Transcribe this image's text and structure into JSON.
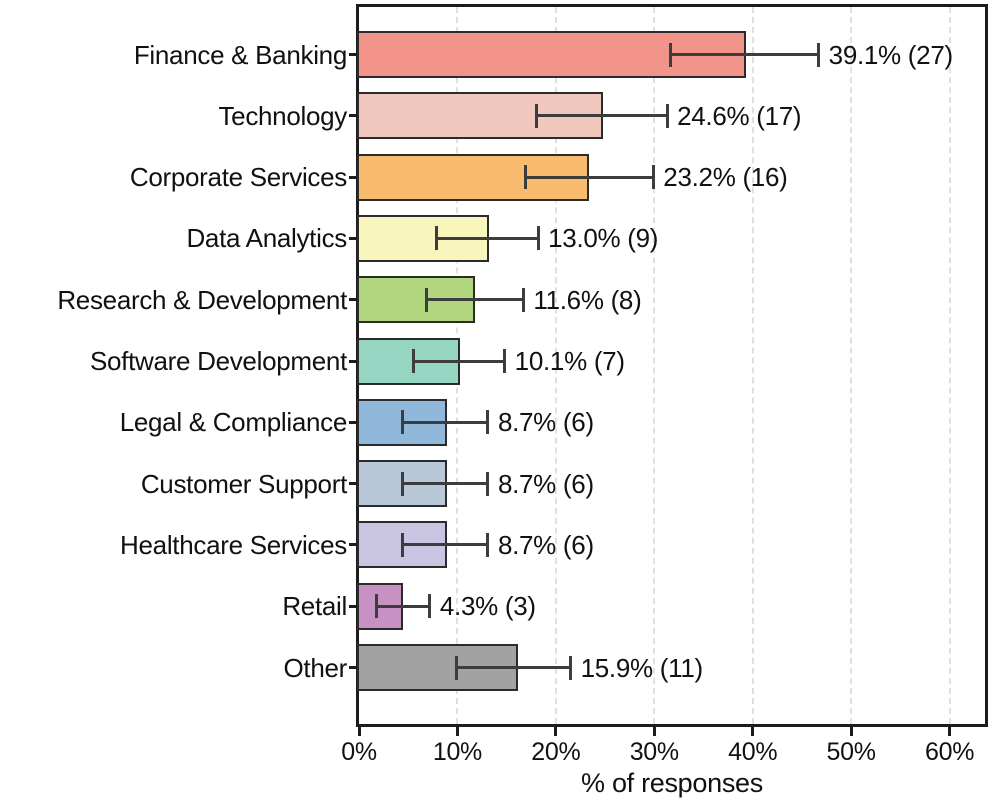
{
  "chart_data": {
    "type": "bar",
    "orientation": "horizontal",
    "title": "",
    "xlabel": "% of responses",
    "ylabel": "",
    "xlim": [
      0,
      63.6
    ],
    "x_tick_values": [
      0,
      10,
      20,
      30,
      40,
      50,
      60
    ],
    "x_tick_labels": [
      "0%",
      "10%",
      "20%",
      "30%",
      "40%",
      "50%",
      "60%"
    ],
    "grid": {
      "axis": "x",
      "style": "dashed",
      "visible": true
    },
    "legend": "none",
    "bars": [
      {
        "category": "Finance & Banking",
        "value": 39.1,
        "count": 27,
        "label": "39.1% (27)",
        "err_low": 31.6,
        "err_high": 46.7,
        "color": "#f3948a"
      },
      {
        "category": "Technology",
        "value": 24.6,
        "count": 17,
        "label": "24.6% (17)",
        "err_low": 18.0,
        "err_high": 31.3,
        "color": "#f0c8bd"
      },
      {
        "category": "Corporate Services",
        "value": 23.2,
        "count": 16,
        "label": "23.2% (16)",
        "err_low": 16.9,
        "err_high": 29.9,
        "color": "#f9bb6d"
      },
      {
        "category": "Data Analytics",
        "value": 13.0,
        "count": 9,
        "label": "13.0% (9)",
        "err_low": 7.9,
        "err_high": 18.2,
        "color": "#f8f6bd"
      },
      {
        "category": "Research & Development",
        "value": 11.6,
        "count": 8,
        "label": "11.6% (8)",
        "err_low": 6.9,
        "err_high": 16.7,
        "color": "#b2d67d"
      },
      {
        "category": "Software Development",
        "value": 10.1,
        "count": 7,
        "label": "10.1% (7)",
        "err_low": 5.5,
        "err_high": 14.8,
        "color": "#97d5c3"
      },
      {
        "category": "Legal & Compliance",
        "value": 8.7,
        "count": 6,
        "label": "8.7% (6)",
        "err_low": 4.4,
        "err_high": 13.1,
        "color": "#8fb8da"
      },
      {
        "category": "Customer Support",
        "value": 8.7,
        "count": 6,
        "label": "8.7% (6)",
        "err_low": 4.4,
        "err_high": 13.1,
        "color": "#b9c8d9"
      },
      {
        "category": "Healthcare Services",
        "value": 8.7,
        "count": 6,
        "label": "8.7% (6)",
        "err_low": 4.4,
        "err_high": 13.1,
        "color": "#c9c4e2"
      },
      {
        "category": "Retail",
        "value": 4.3,
        "count": 3,
        "label": "4.3% (3)",
        "err_low": 1.8,
        "err_high": 7.2,
        "color": "#c791c3"
      },
      {
        "category": "Other",
        "value": 15.9,
        "count": 11,
        "label": "15.9% (11)",
        "err_low": 9.9,
        "err_high": 21.5,
        "color": "#a2a2a2"
      }
    ],
    "colors": {
      "bar_edge": "#2b2b2b",
      "error_bar": "#3d3d3d",
      "spine": "#1c1c1c",
      "grid": "#e0e0e0",
      "text": "#111111",
      "background": "#ffffff"
    }
  }
}
